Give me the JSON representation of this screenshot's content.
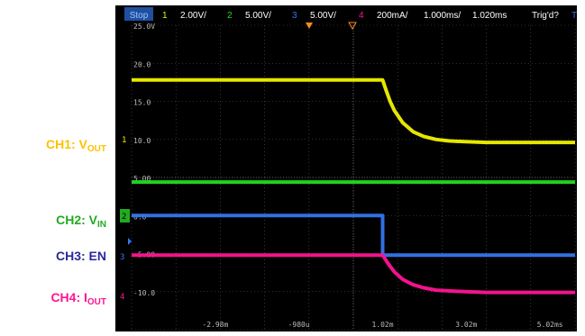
{
  "side_labels": [
    {
      "name": "CH1: V",
      "sub": "OUT",
      "color": "#ffc000"
    },
    {
      "name": "CH2: V",
      "sub": "IN",
      "color": "#22aa22"
    },
    {
      "name": "CH3: EN",
      "sub": "",
      "color": "#2a2a9a"
    },
    {
      "name": "CH4: I",
      "sub": "OUT",
      "color": "#ff1493"
    }
  ],
  "top_bar": {
    "run_state": "Stop",
    "ch1_num": "1",
    "ch1_scale": "2.00V/",
    "ch2_num": "2",
    "ch2_scale": "5.00V/",
    "ch3_num": "3",
    "ch3_scale": "5.00V/",
    "ch4_num": "4",
    "ch4_scale": "200mA/",
    "time_scale": "1.000ms/",
    "trigger_time": "1.020ms",
    "trigger_state": "Trig'd?"
  },
  "channel_markers": {
    "ch1": "1",
    "ch2": "2",
    "ch3": "3",
    "ch4": "4"
  },
  "colors": {
    "ch1": "#f2f200",
    "ch2": "#22dd22",
    "ch3": "#3377ee",
    "ch4": "#ff1493",
    "screen_bg": "#000000",
    "grid": "#5a5a5a"
  },
  "chart_data": {
    "type": "line",
    "title": "",
    "xlabel": "",
    "ylabel": "",
    "xlim": [
      -4.98,
      5.62
    ],
    "ylim": [
      -15,
      25
    ],
    "x_tick_labels": [
      "-2.98m",
      "-980u",
      "1.02m",
      "3.02m",
      "5.02ms"
    ],
    "x_tick_values": [
      -2.98,
      -0.98,
      1.02,
      3.02,
      5.02
    ],
    "y_tick_labels": [
      "25.0V",
      "20.0",
      "15.0",
      "10.0",
      "5.00",
      "0.0",
      "-5.00",
      "-10.0"
    ],
    "y_tick_values": [
      25,
      20,
      15,
      10,
      5,
      0,
      -5,
      -10
    ],
    "series": [
      {
        "key": "ch1",
        "x": [
          -4.98,
          1.02,
          1.1,
          1.2,
          1.3,
          1.5,
          1.75,
          2.0,
          2.3,
          2.6,
          3.0,
          3.5,
          5.62
        ],
        "y": [
          17.8,
          17.8,
          16.5,
          15.0,
          13.8,
          12.2,
          11.0,
          10.4,
          10.0,
          9.8,
          9.7,
          9.6,
          9.6
        ]
      },
      {
        "key": "ch2",
        "x": [
          -4.98,
          5.62
        ],
        "y": [
          4.4,
          4.4
        ]
      },
      {
        "key": "ch3",
        "x": [
          -4.98,
          1.02,
          1.02,
          5.62
        ],
        "y": [
          0.0,
          0.0,
          -5.2,
          -5.2
        ]
      },
      {
        "key": "ch4",
        "x": [
          -4.98,
          1.02,
          1.15,
          1.3,
          1.5,
          1.75,
          2.0,
          2.3,
          2.6,
          3.0,
          3.5,
          5.62
        ],
        "y": [
          -5.2,
          -5.2,
          -6.3,
          -7.4,
          -8.4,
          -9.1,
          -9.5,
          -9.8,
          -9.9,
          -10.0,
          -10.1,
          -10.1
        ]
      }
    ]
  }
}
